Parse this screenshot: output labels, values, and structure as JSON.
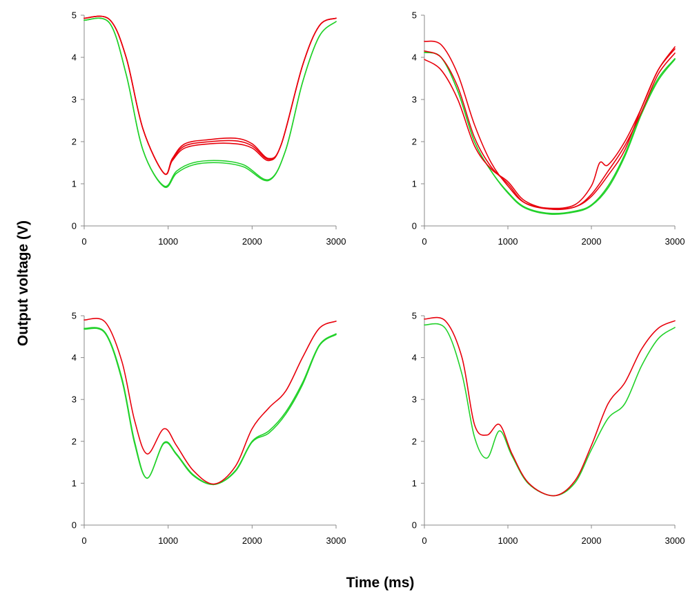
{
  "xlabel": "Time (ms)",
  "ylabel": "Output voltage (V)",
  "colors": {
    "red": "#e8000b",
    "green": "#22d12a",
    "axis": "#888888"
  },
  "chart_data": [
    {
      "type": "line",
      "xlim": [
        0,
        3000
      ],
      "ylim": [
        0,
        5
      ],
      "xticks": [
        0,
        1000,
        2000,
        3000
      ],
      "yticks": [
        0,
        1,
        2,
        3,
        4,
        5
      ],
      "grid": false,
      "series": [
        {
          "color": "red",
          "x": [
            0,
            300,
            500,
            700,
            950,
            1050,
            1200,
            1500,
            1800,
            2000,
            2200,
            2350,
            2600,
            2800,
            3000
          ],
          "y": [
            4.93,
            4.9,
            4.0,
            2.3,
            1.25,
            1.6,
            1.95,
            2.05,
            2.08,
            1.95,
            1.6,
            1.95,
            3.8,
            4.75,
            4.93
          ]
        },
        {
          "color": "red",
          "x": [
            0,
            300,
            500,
            700,
            950,
            1050,
            1200,
            1500,
            1800,
            2000,
            2200,
            2350,
            2600,
            2800,
            3000
          ],
          "y": [
            4.93,
            4.9,
            4.0,
            2.3,
            1.25,
            1.55,
            1.85,
            1.95,
            1.95,
            1.85,
            1.55,
            1.95,
            3.8,
            4.75,
            4.93
          ]
        },
        {
          "color": "red",
          "x": [
            0,
            300,
            500,
            700,
            950,
            1050,
            1200,
            1500,
            1800,
            2000,
            2200,
            2350,
            2600,
            2800,
            3000
          ],
          "y": [
            4.93,
            4.9,
            4.0,
            2.3,
            1.25,
            1.58,
            1.9,
            2.0,
            2.02,
            1.9,
            1.58,
            1.95,
            3.8,
            4.75,
            4.93
          ]
        },
        {
          "color": "green",
          "x": [
            0,
            300,
            500,
            700,
            950,
            1100,
            1300,
            1600,
            1900,
            2200,
            2400,
            2600,
            2800,
            3000
          ],
          "y": [
            4.88,
            4.82,
            3.6,
            1.8,
            0.93,
            1.25,
            1.45,
            1.5,
            1.4,
            1.08,
            1.8,
            3.4,
            4.5,
            4.85
          ]
        },
        {
          "color": "green",
          "x": [
            0,
            300,
            500,
            700,
            950,
            1100,
            1300,
            1600,
            1900,
            2200,
            2400,
            2600,
            2800,
            3000
          ],
          "y": [
            4.88,
            4.82,
            3.6,
            1.8,
            0.95,
            1.3,
            1.5,
            1.55,
            1.45,
            1.1,
            1.8,
            3.4,
            4.5,
            4.85
          ]
        }
      ]
    },
    {
      "type": "line",
      "xlim": [
        0,
        3000
      ],
      "ylim": [
        0,
        5
      ],
      "xticks": [
        0,
        1000,
        2000,
        3000
      ],
      "yticks": [
        0,
        1,
        2,
        3,
        4,
        5
      ],
      "grid": false,
      "series": [
        {
          "color": "red",
          "x": [
            0,
            200,
            400,
            600,
            800,
            1000,
            1200,
            1500,
            1800,
            2000,
            2100,
            2200,
            2400,
            2600,
            2800,
            3000
          ],
          "y": [
            4.38,
            4.3,
            3.6,
            2.4,
            1.5,
            0.95,
            0.55,
            0.42,
            0.5,
            0.95,
            1.5,
            1.45,
            2.0,
            2.8,
            3.7,
            4.25
          ]
        },
        {
          "color": "red",
          "x": [
            0,
            200,
            400,
            600,
            800,
            1000,
            1200,
            1500,
            1800,
            2000,
            2200,
            2400,
            2600,
            2800,
            3000
          ],
          "y": [
            3.95,
            3.7,
            3.0,
            1.9,
            1.35,
            1.05,
            0.6,
            0.4,
            0.45,
            0.75,
            1.3,
            1.9,
            2.7,
            3.6,
            4.1
          ]
        },
        {
          "color": "red",
          "x": [
            0,
            200,
            400,
            600,
            800,
            1000,
            1200,
            1500,
            1800,
            2000,
            2200,
            2400,
            2600,
            2800,
            3000
          ],
          "y": [
            4.15,
            4.0,
            3.3,
            2.1,
            1.4,
            1.0,
            0.55,
            0.4,
            0.45,
            0.7,
            1.2,
            1.8,
            2.8,
            3.7,
            4.2
          ]
        },
        {
          "color": "green",
          "x": [
            0,
            200,
            400,
            600,
            800,
            1000,
            1200,
            1500,
            1800,
            2000,
            2200,
            2400,
            2600,
            2800,
            3000
          ],
          "y": [
            4.12,
            4.0,
            3.2,
            2.0,
            1.3,
            0.8,
            0.45,
            0.3,
            0.35,
            0.5,
            0.95,
            1.7,
            2.7,
            3.5,
            3.97
          ]
        },
        {
          "color": "green",
          "x": [
            0,
            200,
            400,
            600,
            800,
            1000,
            1200,
            1500,
            1800,
            2000,
            2200,
            2400,
            2600,
            2800,
            3000
          ],
          "y": [
            4.12,
            4.0,
            3.2,
            2.0,
            1.3,
            0.78,
            0.43,
            0.28,
            0.33,
            0.48,
            0.9,
            1.65,
            2.65,
            3.45,
            3.95
          ]
        }
      ]
    },
    {
      "type": "line",
      "xlim": [
        0,
        3000
      ],
      "ylim": [
        0,
        5
      ],
      "xticks": [
        0,
        1000,
        2000,
        3000
      ],
      "yticks": [
        0,
        1,
        2,
        3,
        4,
        5
      ],
      "grid": false,
      "series": [
        {
          "color": "red",
          "x": [
            0,
            250,
            450,
            600,
            750,
            950,
            1100,
            1300,
            1550,
            1800,
            2000,
            2200,
            2400,
            2600,
            2800,
            3000
          ],
          "y": [
            4.9,
            4.85,
            3.9,
            2.5,
            1.7,
            2.3,
            1.9,
            1.3,
            0.98,
            1.4,
            2.3,
            2.8,
            3.2,
            4.0,
            4.7,
            4.87
          ]
        },
        {
          "color": "green",
          "x": [
            0,
            250,
            450,
            600,
            750,
            950,
            1100,
            1300,
            1550,
            1800,
            2000,
            2200,
            2400,
            2600,
            2800,
            3000
          ],
          "y": [
            4.7,
            4.6,
            3.5,
            2.0,
            1.12,
            1.97,
            1.7,
            1.2,
            0.97,
            1.3,
            2.0,
            2.25,
            2.7,
            3.4,
            4.3,
            4.57
          ]
        },
        {
          "color": "green",
          "x": [
            0,
            250,
            450,
            600,
            750,
            950,
            1100,
            1300,
            1550,
            1800,
            2000,
            2200,
            2400,
            2600,
            2800,
            3000
          ],
          "y": [
            4.68,
            4.58,
            3.45,
            1.95,
            1.12,
            1.95,
            1.68,
            1.18,
            0.97,
            1.28,
            1.98,
            2.2,
            2.65,
            3.35,
            4.28,
            4.55
          ]
        }
      ]
    },
    {
      "type": "line",
      "xlim": [
        0,
        3000
      ],
      "ylim": [
        0,
        5
      ],
      "xticks": [
        0,
        1000,
        2000,
        3000
      ],
      "yticks": [
        0,
        1,
        2,
        3,
        4,
        5
      ],
      "grid": false,
      "series": [
        {
          "color": "red",
          "x": [
            0,
            250,
            450,
            600,
            750,
            900,
            1050,
            1250,
            1550,
            1800,
            2000,
            2200,
            2400,
            2600,
            2800,
            3000
          ],
          "y": [
            4.92,
            4.88,
            4.0,
            2.4,
            2.15,
            2.4,
            1.7,
            1.0,
            0.7,
            1.05,
            1.9,
            2.9,
            3.4,
            4.2,
            4.7,
            4.88
          ]
        },
        {
          "color": "green",
          "x": [
            0,
            250,
            450,
            600,
            750,
            900,
            1050,
            1250,
            1550,
            1800,
            2000,
            2200,
            2400,
            2600,
            2800,
            3000
          ],
          "y": [
            4.78,
            4.7,
            3.6,
            2.1,
            1.6,
            2.25,
            1.65,
            0.98,
            0.7,
            1.0,
            1.8,
            2.55,
            2.9,
            3.8,
            4.45,
            4.72
          ]
        }
      ]
    }
  ]
}
